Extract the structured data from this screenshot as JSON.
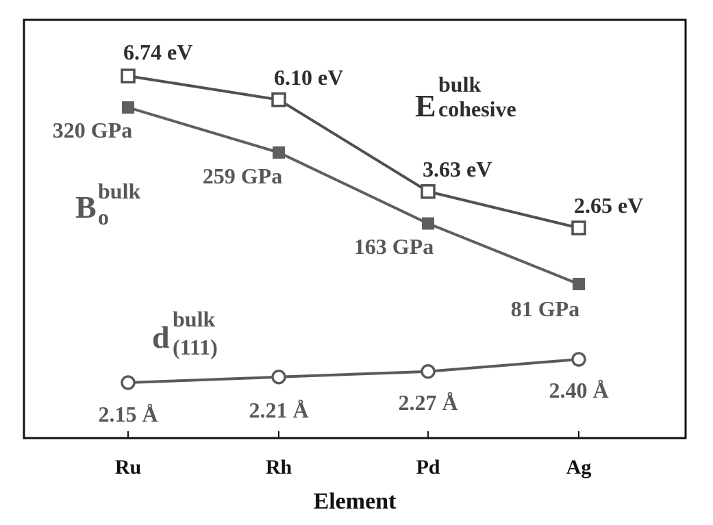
{
  "chart_data": {
    "type": "line",
    "categories": [
      "Ru",
      "Rh",
      "Pd",
      "Ag"
    ],
    "xlabel": "Element",
    "ylabel": "",
    "title": "",
    "grid": false,
    "series": [
      {
        "key": "cohesive",
        "values": [
          6.74,
          6.1,
          3.63,
          2.65
        ],
        "labels": [
          "6.74 eV",
          "6.10 eV",
          "3.63 eV",
          "2.65 eV"
        ],
        "marker": "open-square",
        "color": "#505050"
      },
      {
        "key": "bulk_modulus",
        "values": [
          320,
          259,
          163,
          81
        ],
        "labels": [
          "320 GPa",
          "259 GPa",
          "163 GPa",
          "81 GPa"
        ],
        "marker": "filled-square",
        "color": "#5f5f5f"
      },
      {
        "key": "interlayer_spacing",
        "values": [
          2.15,
          2.21,
          2.27,
          2.4
        ],
        "labels": [
          "2.15 Å",
          "2.21 Å",
          "2.27 Å",
          "2.40 Å"
        ],
        "marker": "open-circle",
        "color": "#5a5a5a"
      }
    ],
    "annotations": {
      "cohesive": {
        "base": "E",
        "sup": "bulk",
        "sub": "cohesive"
      },
      "bulk_modulus": {
        "base": "B",
        "sup": "bulk",
        "sub": "o"
      },
      "interlayer_spacing": {
        "base": "d",
        "sup": "bulk",
        "sub": "(111)"
      }
    }
  }
}
